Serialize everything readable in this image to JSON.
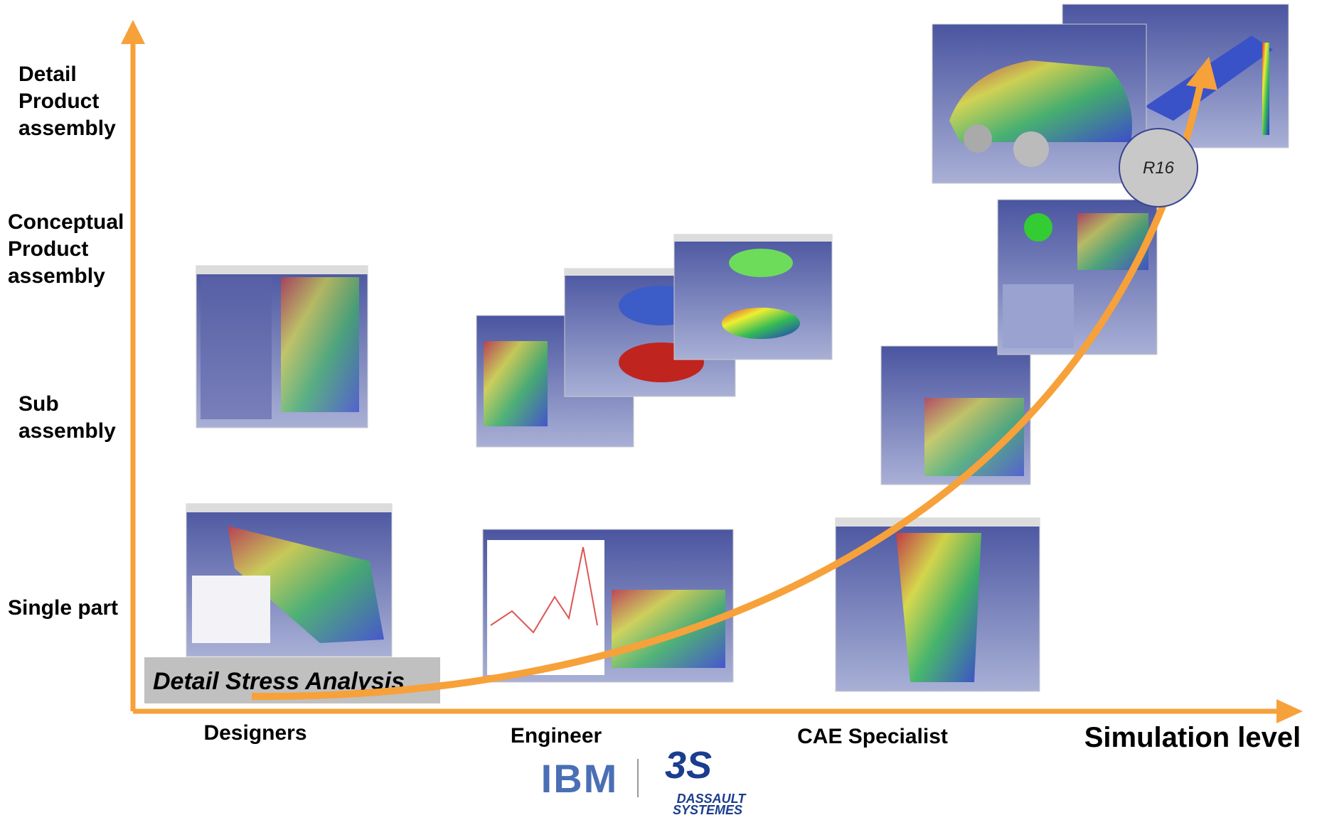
{
  "y_axis": {
    "levels": [
      {
        "lines": [
          "Detail",
          "Product",
          "assembly"
        ]
      },
      {
        "lines": [
          "Conceptual",
          "Product",
          "assembly"
        ]
      },
      {
        "lines": [
          "Sub",
          "assembly"
        ]
      },
      {
        "lines": [
          "Single part"
        ]
      }
    ]
  },
  "x_axis": {
    "groups": [
      "Designers",
      "Engineer",
      "CAE Specialist"
    ],
    "title": "Simulation level"
  },
  "curve": {
    "start_label": "Detail Stress Analysis",
    "milestone": "R16"
  },
  "footer": {
    "logo_left": "IBM",
    "logo_right": [
      "DASSAULT",
      "SYSTEMES"
    ]
  }
}
